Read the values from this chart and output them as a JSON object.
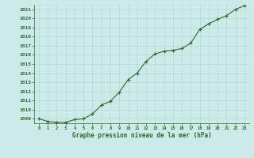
{
  "x": [
    0,
    1,
    2,
    3,
    4,
    5,
    6,
    7,
    8,
    9,
    10,
    11,
    12,
    13,
    14,
    15,
    16,
    17,
    18,
    19,
    20,
    21,
    22,
    23
  ],
  "y": [
    1009.0,
    1008.7,
    1008.6,
    1008.6,
    1008.9,
    1009.0,
    1009.5,
    1010.5,
    1010.9,
    1011.9,
    1013.3,
    1014.0,
    1015.3,
    1016.1,
    1016.4,
    1016.5,
    1016.7,
    1017.3,
    1018.8,
    1019.4,
    1019.9,
    1020.3,
    1021.0,
    1021.4
  ],
  "line_color": "#2d6a2d",
  "marker": "+",
  "bg_color": "#cceae7",
  "grid_color": "#b0d4d0",
  "xlabel": "Graphe pression niveau de la mer (hPa)",
  "xlabel_color": "#2d6a2d",
  "tick_color": "#2d6a2d",
  "ylim_min": 1009,
  "ylim_max": 1021,
  "xlim_min": 0,
  "xlim_max": 23,
  "ytick_step": 1,
  "xtick_labels": [
    "0",
    "1",
    "2",
    "3",
    "4",
    "5",
    "6",
    "7",
    "8",
    "9",
    "10",
    "11",
    "12",
    "13",
    "14",
    "15",
    "16",
    "17",
    "18",
    "19",
    "20",
    "21",
    "22",
    "23"
  ]
}
